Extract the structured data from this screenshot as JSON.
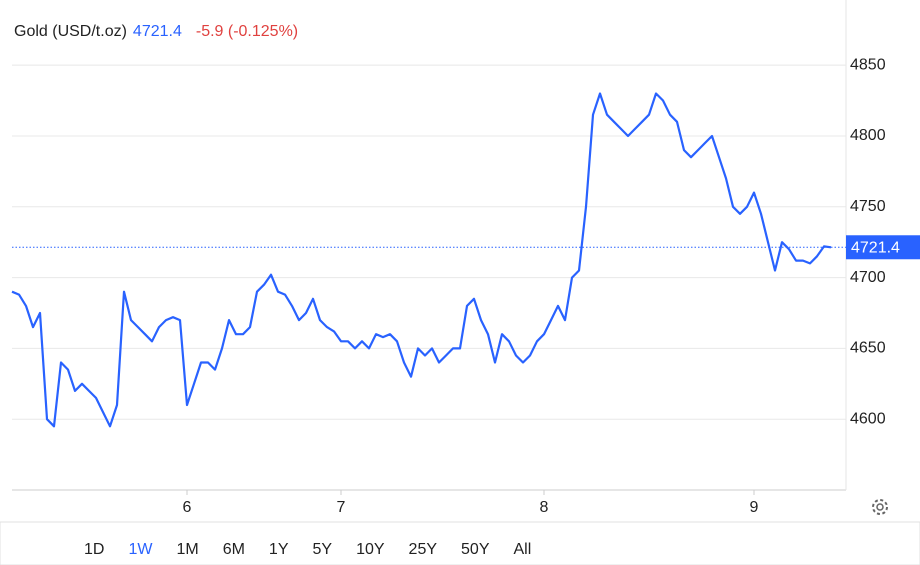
{
  "chart_data": {
    "type": "line",
    "title": "Gold (USD/t.oz)",
    "last_price": 4721.4,
    "change_label": "-5.9 (-0.125%)",
    "color": "#2962ff",
    "categories": [
      null,
      null,
      null,
      null,
      null,
      null,
      null,
      null,
      null,
      null,
      null,
      null,
      null,
      null,
      null,
      null,
      null,
      null,
      null,
      null,
      null,
      null,
      null,
      null,
      null,
      "6",
      null,
      null,
      null,
      null,
      null,
      null,
      null,
      null,
      null,
      null,
      null,
      null,
      null,
      null,
      null,
      null,
      null,
      null,
      null,
      null,
      null,
      "7",
      null,
      null,
      null,
      null,
      null,
      null,
      null,
      null,
      null,
      null,
      null,
      null,
      null,
      null,
      null,
      null,
      null,
      null,
      null,
      null,
      null,
      null,
      null,
      null,
      null,
      null,
      null,
      null,
      "8",
      null,
      null,
      null,
      null,
      null,
      null,
      null,
      null,
      null,
      null,
      null,
      null,
      null,
      null,
      null,
      null,
      null,
      null,
      null,
      null,
      null,
      null,
      null,
      null,
      null,
      null,
      null,
      null,
      null,
      "9",
      null,
      null,
      null,
      null,
      null,
      null,
      null,
      null,
      null,
      null,
      null
    ],
    "values": [
      4690,
      4688,
      4680,
      4665,
      4675,
      4600,
      4595,
      4640,
      4635,
      4620,
      4625,
      4620,
      4615,
      4605,
      4595,
      4610,
      4690,
      4670,
      4665,
      4660,
      4655,
      4665,
      4670,
      4672,
      4670,
      4610,
      4625,
      4640,
      4640,
      4635,
      4650,
      4670,
      4660,
      4660,
      4665,
      4690,
      4695,
      4702,
      4690,
      4688,
      4680,
      4670,
      4675,
      4685,
      4670,
      4665,
      4662,
      4655,
      4655,
      4650,
      4655,
      4650,
      4660,
      4658,
      4660,
      4655,
      4640,
      4630,
      4650,
      4645,
      4650,
      4640,
      4645,
      4650,
      4650,
      4680,
      4685,
      4670,
      4660,
      4640,
      4660,
      4655,
      4645,
      4640,
      4645,
      4655,
      4660,
      4670,
      4680,
      4670,
      4700,
      4705,
      4750,
      4815,
      4830,
      4815,
      4810,
      4805,
      4800,
      4805,
      4810,
      4815,
      4830,
      4825,
      4815,
      4810,
      4790,
      4785,
      4790,
      4795,
      4800,
      4785,
      4770,
      4750,
      4745,
      4750,
      4760,
      4745,
      4725,
      4705,
      4725,
      4720,
      4712,
      4712,
      4710,
      4715,
      4722,
      4721.4
    ],
    "ylim": [
      4550,
      4896
    ],
    "yticks": [
      4600,
      4650,
      4700,
      4750,
      4800,
      4850
    ],
    "grid": true,
    "ranges": [
      "1D",
      "1W",
      "1M",
      "6M",
      "1Y",
      "5Y",
      "10Y",
      "25Y",
      "50Y",
      "All"
    ],
    "active_range": "1W"
  }
}
